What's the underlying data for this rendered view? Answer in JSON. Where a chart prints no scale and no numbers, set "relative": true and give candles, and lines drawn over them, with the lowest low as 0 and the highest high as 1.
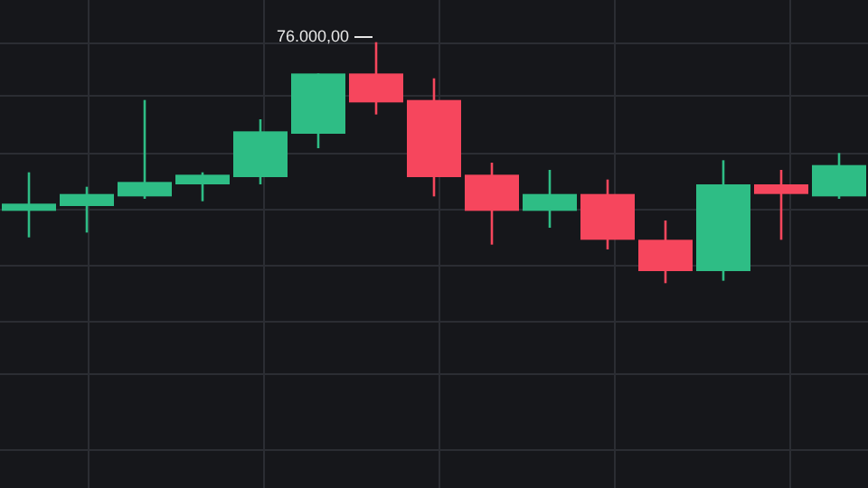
{
  "chart_data": {
    "type": "candlestick",
    "relative": true,
    "grid": true,
    "categories": [
      null,
      null,
      null,
      null,
      null,
      null,
      null,
      null,
      null,
      null,
      null,
      null,
      null,
      null,
      null
    ],
    "ohlc": [
      [
        0.3,
        0.46,
        0.19,
        0.33
      ],
      [
        0.32,
        0.4,
        0.21,
        0.37
      ],
      [
        0.36,
        0.76,
        0.35,
        0.42
      ],
      [
        0.41,
        0.46,
        0.34,
        0.45
      ],
      [
        0.44,
        0.68,
        0.41,
        0.63
      ],
      [
        0.62,
        0.87,
        0.56,
        0.87
      ],
      [
        0.87,
        1,
        0.7,
        0.75
      ],
      [
        0.76,
        0.85,
        0.36,
        0.44
      ],
      [
        0.45,
        0.5,
        0.16,
        0.3
      ],
      [
        0.3,
        0.47,
        0.23,
        0.37
      ],
      [
        0.37,
        0.43,
        0.14,
        0.18
      ],
      [
        0.18,
        0.26,
        0,
        0.05
      ],
      [
        0.05,
        0.51,
        0.01,
        0.41
      ],
      [
        0.41,
        0.47,
        0.18,
        0.37
      ],
      [
        0.36,
        0.54,
        0.35,
        0.49
      ]
    ],
    "colors": [
      "#2ebd85",
      "#2ebd85",
      "#2ebd85",
      "#2ebd85",
      "#2ebd85",
      "#2ebd85",
      "#f6465d",
      "#f6465d",
      "#f6465d",
      "#2ebd85",
      "#f6465d",
      "#f6465d",
      "#2ebd85",
      "#f6465d",
      "#2ebd85"
    ],
    "annotations": [
      "76.000,00"
    ]
  }
}
